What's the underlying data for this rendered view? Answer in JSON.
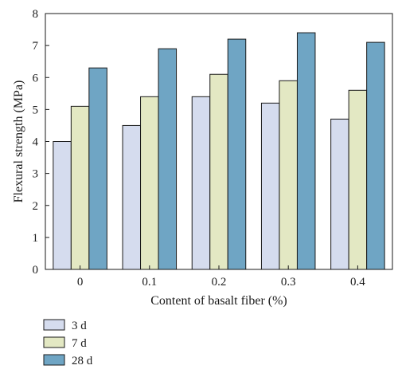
{
  "chart_data": {
    "type": "bar",
    "title": "",
    "xlabel": "Content of basalt fiber (%)",
    "ylabel": "Flexural strength (MPa)",
    "categories": [
      "0",
      "0.1",
      "0.2",
      "0.3",
      "0.4"
    ],
    "ylim": [
      0,
      8
    ],
    "yticks": [
      "0",
      "1",
      "2",
      "3",
      "4",
      "5",
      "6",
      "7",
      "8"
    ],
    "grid": false,
    "legend_position": "bottom-left",
    "series": [
      {
        "name": "3 d",
        "values": [
          4.0,
          4.5,
          5.4,
          5.2,
          4.7
        ],
        "color": "#d5dcee"
      },
      {
        "name": "7 d",
        "values": [
          5.1,
          5.4,
          6.1,
          5.9,
          5.6
        ],
        "color": "#e3e8c3"
      },
      {
        "name": "28 d",
        "values": [
          6.3,
          6.9,
          7.2,
          7.4,
          7.1
        ],
        "color": "#6fa5c4"
      }
    ]
  }
}
